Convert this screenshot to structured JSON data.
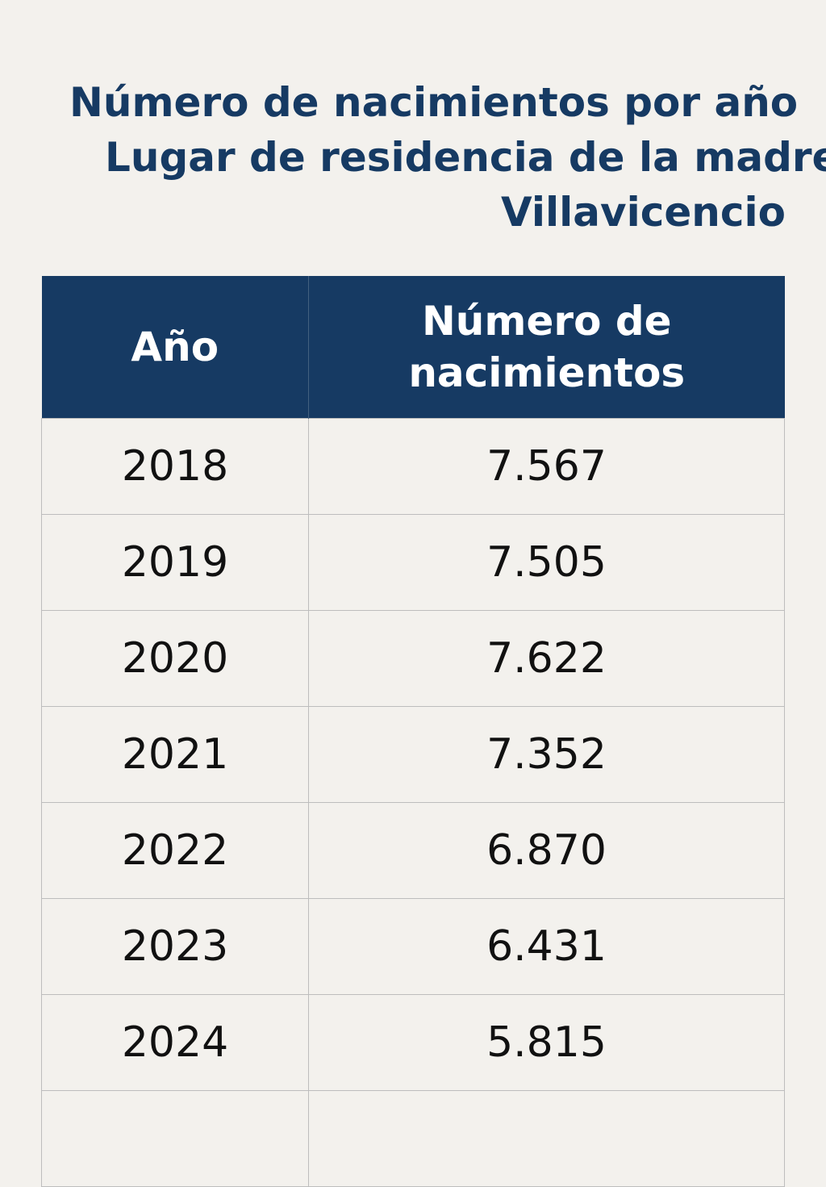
{
  "title": {
    "line1": "Número de nacimientos por año",
    "line2": "Lugar de residencia de la madre:",
    "line3": "Villavicencio"
  },
  "table": {
    "headers": [
      "Año",
      "Número de nacimientos"
    ],
    "rows": [
      [
        "2018",
        "7.567"
      ],
      [
        "2019",
        "7.505"
      ],
      [
        "2020",
        "7.622"
      ],
      [
        "2021",
        "7.352"
      ],
      [
        "2022",
        "6.870"
      ],
      [
        "2023",
        "6.431"
      ],
      [
        "2024",
        "5.815"
      ]
    ]
  },
  "colors": {
    "header_bg": "#163a63",
    "title_text": "#163a63",
    "page_bg": "#f3f1ed"
  }
}
